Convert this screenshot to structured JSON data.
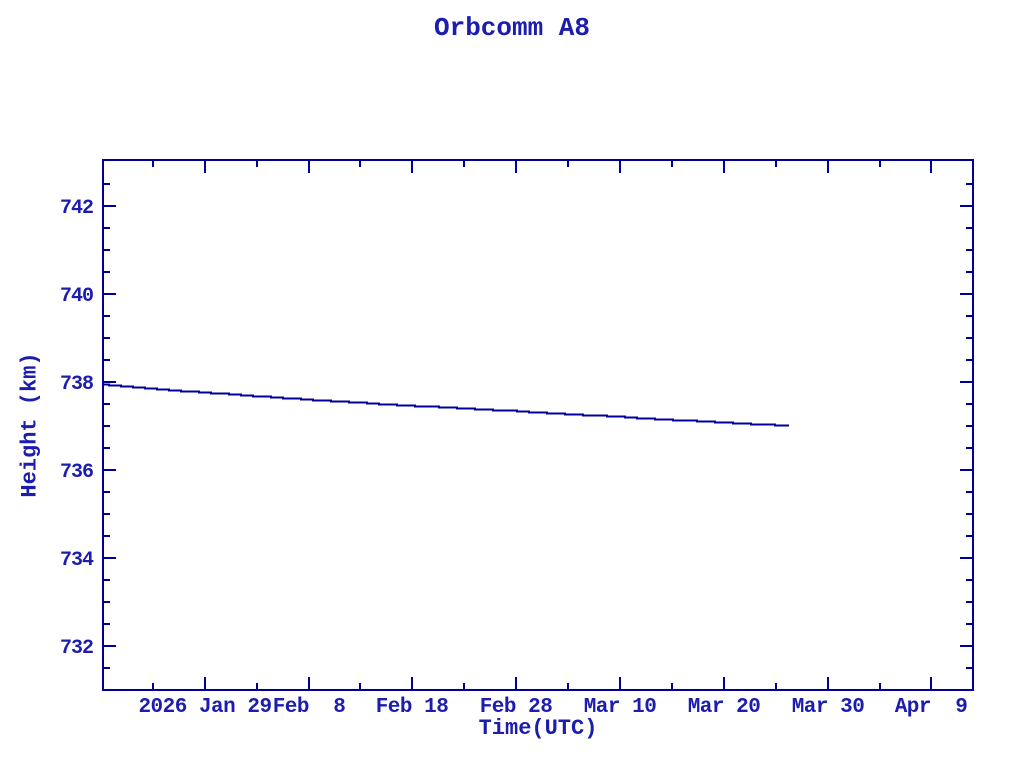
{
  "window": {
    "background": "#ffffff"
  },
  "colors": {
    "ink": "#000099",
    "text": "#1c1cae",
    "background": "#ffffff"
  },
  "chart_data": {
    "type": "line",
    "title": "Orbcomm A8",
    "xlabel": "Time(UTC)",
    "ylabel": "Height (km)",
    "legend": null,
    "grid": false,
    "frame": "box-with-inward-ticks",
    "x_axis": {
      "unit": "date UTC, expressed as day-of-year 2026",
      "range_days": [
        19.2,
        103.0
      ],
      "major_ticks": [
        {
          "day": 29,
          "label": "2026 Jan 29"
        },
        {
          "day": 39,
          "label": "Feb  8"
        },
        {
          "day": 49,
          "label": "Feb 18"
        },
        {
          "day": 59,
          "label": "Feb 28"
        },
        {
          "day": 69,
          "label": "Mar 10"
        },
        {
          "day": 79,
          "label": "Mar 20"
        },
        {
          "day": 89,
          "label": "Mar 30"
        },
        {
          "day": 99,
          "label": "Apr  9"
        }
      ],
      "minor_tick_days": [
        24,
        34,
        44,
        54,
        64,
        74,
        84,
        94
      ]
    },
    "y_axis": {
      "unit": "km",
      "range": [
        731.0,
        743.05
      ],
      "major_ticks": [
        {
          "value": 742,
          "label": "742"
        },
        {
          "value": 740,
          "label": "740"
        },
        {
          "value": 738,
          "label": "738"
        },
        {
          "value": 736,
          "label": "736"
        },
        {
          "value": 734,
          "label": "734"
        },
        {
          "value": 732,
          "label": "732"
        }
      ],
      "minor_step": 0.5
    },
    "series": [
      {
        "name": "Orbcomm A8 height",
        "color": "#000099",
        "x_days": [
          19.2,
          22,
          24,
          26.5,
          29,
          31.5,
          34,
          36.5,
          39,
          41.5,
          44,
          46.5,
          49,
          51.5,
          54,
          56.5,
          59,
          61.5,
          64,
          66.5,
          69,
          71.5,
          74,
          76.5,
          79,
          81,
          83,
          85.3
        ],
        "y_km": [
          737.95,
          737.9,
          737.86,
          737.81,
          737.77,
          737.73,
          737.69,
          737.65,
          737.61,
          737.57,
          737.54,
          737.5,
          737.47,
          737.44,
          737.41,
          737.38,
          737.35,
          737.31,
          737.28,
          737.25,
          737.22,
          737.18,
          737.15,
          737.12,
          737.09,
          737.06,
          737.04,
          737.02
        ]
      }
    ]
  }
}
